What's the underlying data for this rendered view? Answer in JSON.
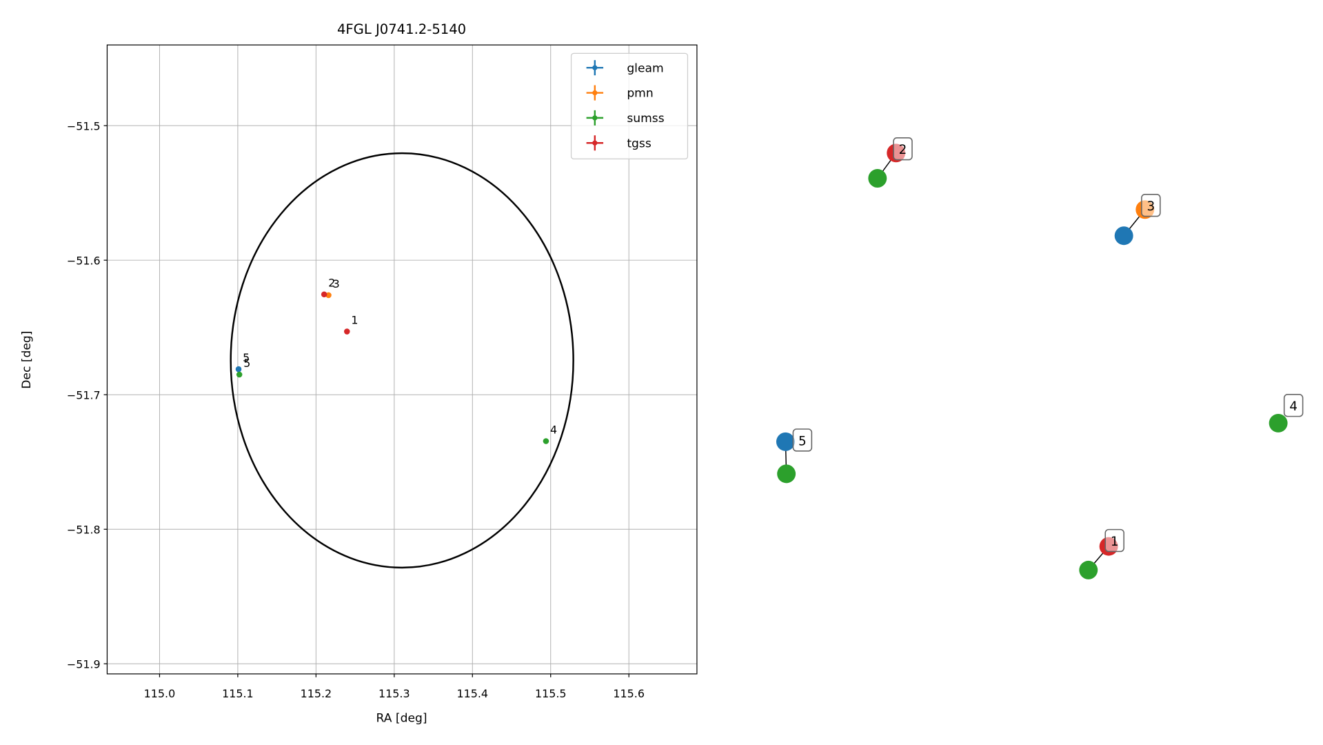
{
  "chart_data": [
    {
      "type": "scatter",
      "title": "4FGL J0741.2-5140",
      "x_label": "RA [deg]",
      "y_label": "Dec [deg]",
      "xlim": [
        114.933,
        115.687
      ],
      "ylim": [
        -51.9075,
        -51.44
      ],
      "xticks": [
        {
          "value": 115.0,
          "label": "115.0"
        },
        {
          "value": 115.1,
          "label": "115.1"
        },
        {
          "value": 115.2,
          "label": "115.2"
        },
        {
          "value": 115.3,
          "label": "115.3"
        },
        {
          "value": 115.4,
          "label": "115.4"
        },
        {
          "value": 115.5,
          "label": "115.5"
        },
        {
          "value": 115.6,
          "label": "115.6"
        }
      ],
      "yticks": [
        {
          "value": -51.5,
          "label": "−51.5"
        },
        {
          "value": -51.6,
          "label": "−51.6"
        },
        {
          "value": -51.7,
          "label": "−51.7"
        },
        {
          "value": -51.8,
          "label": "−51.8"
        },
        {
          "value": -51.9,
          "label": "−51.9"
        }
      ],
      "grid": true,
      "legend": "upper right",
      "ellipse": {
        "center": [
          115.31,
          -51.6745
        ],
        "semi_axes": [
          0.219,
          0.154
        ],
        "color": "#000000"
      },
      "series": [
        {
          "name": "gleam",
          "color": "#1f77b4",
          "x": [
            115.101
          ],
          "y": [
            -51.681
          ],
          "labels": [
            "5"
          ]
        },
        {
          "name": "pmn",
          "color": "#ff7f0e",
          "x": [
            115.216
          ],
          "y": [
            -51.626
          ],
          "labels": [
            "3"
          ]
        },
        {
          "name": "sumss",
          "color": "#2ca02c",
          "x": [
            115.102,
            115.494
          ],
          "y": [
            -51.685,
            -51.7345
          ],
          "labels": [
            "5",
            "4"
          ]
        },
        {
          "name": "tgss",
          "color": "#d62728",
          "x": [
            115.2396,
            115.2104
          ],
          "y": [
            -51.653,
            -51.6254
          ],
          "labels": [
            "1",
            "2"
          ]
        }
      ]
    },
    {
      "type": "network",
      "groups": [
        {
          "label": "1",
          "nodes": [
            {
              "color": "#d62728"
            },
            {
              "color": "#2ca02c"
            }
          ]
        },
        {
          "label": "2",
          "nodes": [
            {
              "color": "#d62728"
            },
            {
              "color": "#2ca02c"
            }
          ]
        },
        {
          "label": "3",
          "nodes": [
            {
              "color": "#ff7f0e"
            },
            {
              "color": "#1f77b4"
            }
          ]
        },
        {
          "label": "4",
          "nodes": [
            {
              "color": "#2ca02c"
            }
          ]
        },
        {
          "label": "5",
          "nodes": [
            {
              "color": "#1f77b4"
            },
            {
              "color": "#2ca02c"
            }
          ]
        }
      ]
    }
  ]
}
